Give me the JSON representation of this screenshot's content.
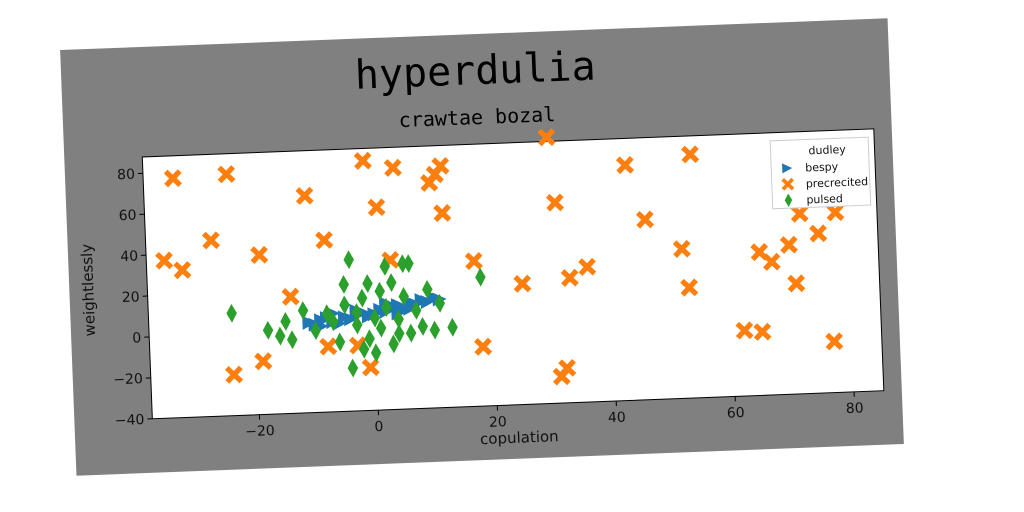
{
  "chart_data": {
    "type": "scatter",
    "title": "hyperdulia",
    "subtitle": "crawtae bozal",
    "xlabel": "copulation",
    "ylabel": "weightlessly",
    "xlim": [
      -38,
      85
    ],
    "ylim": [
      -40,
      88
    ],
    "xticks": [
      -20,
      0,
      20,
      40,
      60,
      80
    ],
    "yticks": [
      -40,
      -20,
      0,
      20,
      40,
      60,
      80
    ],
    "grid": false,
    "legend": {
      "title": "dudley",
      "placement": "top-right"
    },
    "series": [
      {
        "name": "bespy",
        "marker": "triangle-right",
        "color": "#1f77b4",
        "points": [
          [
            -11,
            4
          ],
          [
            -10,
            3
          ],
          [
            -9,
            5
          ],
          [
            -8,
            6
          ],
          [
            -7,
            4
          ],
          [
            -6,
            3
          ],
          [
            -5,
            6
          ],
          [
            -4,
            5
          ],
          [
            -3,
            7
          ],
          [
            -2,
            8
          ],
          [
            -1,
            6
          ],
          [
            0,
            7
          ],
          [
            1,
            9
          ],
          [
            2,
            8
          ],
          [
            3,
            10
          ],
          [
            4,
            11
          ],
          [
            5,
            9
          ],
          [
            6,
            12
          ],
          [
            7,
            11
          ],
          [
            8,
            13
          ],
          [
            9,
            12
          ],
          [
            10,
            14
          ],
          [
            11,
            13
          ],
          [
            -7,
            8
          ],
          [
            -3,
            9
          ],
          [
            2,
            12
          ],
          [
            6,
            9
          ],
          [
            -9,
            2
          ],
          [
            4,
            7
          ]
        ]
      },
      {
        "name": "precrecited",
        "marker": "x",
        "color": "#ff7f0e",
        "points": [
          [
            -35,
            37
          ],
          [
            -33,
            77
          ],
          [
            -32,
            32
          ],
          [
            -27,
            46
          ],
          [
            -24,
            78
          ],
          [
            -24,
            -20
          ],
          [
            -19,
            38
          ],
          [
            -19,
            -14
          ],
          [
            -14,
            17
          ],
          [
            -11,
            66
          ],
          [
            -8,
            44
          ],
          [
            -8,
            -8
          ],
          [
            -3,
            -8
          ],
          [
            -1,
            82
          ],
          [
            -1,
            -19
          ],
          [
            1,
            59
          ],
          [
            3,
            33
          ],
          [
            4,
            78
          ],
          [
            10,
            70
          ],
          [
            11,
            74
          ],
          [
            12,
            55
          ],
          [
            12,
            78
          ],
          [
            17,
            31
          ],
          [
            18,
            -11
          ],
          [
            25,
            19
          ],
          [
            30,
            90
          ],
          [
            31,
            -27
          ],
          [
            31,
            58
          ],
          [
            32,
            -23
          ],
          [
            33,
            21
          ],
          [
            36,
            26
          ],
          [
            43,
            75
          ],
          [
            46,
            48
          ],
          [
            52,
            33
          ],
          [
            53,
            14
          ],
          [
            54,
            79
          ],
          [
            62,
            -8
          ],
          [
            65,
            -9
          ],
          [
            65,
            30
          ],
          [
            67,
            25
          ],
          [
            70,
            33
          ],
          [
            71,
            14
          ],
          [
            72,
            48
          ],
          [
            75,
            38
          ],
          [
            77,
            -15
          ],
          [
            78,
            48
          ]
        ]
      },
      {
        "name": "pulsed",
        "marker": "diamond",
        "color": "#2ca02c",
        "points": [
          [
            -24,
            10
          ],
          [
            -18,
            1
          ],
          [
            -16,
            -2
          ],
          [
            -15,
            5
          ],
          [
            -14,
            -4
          ],
          [
            -12,
            10
          ],
          [
            -10,
            0
          ],
          [
            -8,
            8
          ],
          [
            -7,
            4
          ],
          [
            -6,
            -6
          ],
          [
            -5,
            22
          ],
          [
            -5,
            12
          ],
          [
            -4,
            34
          ],
          [
            -4,
            -19
          ],
          [
            -3,
            8
          ],
          [
            -3,
            2
          ],
          [
            -2,
            15
          ],
          [
            -2,
            -10
          ],
          [
            -1,
            22
          ],
          [
            -1,
            -5
          ],
          [
            0,
            5
          ],
          [
            0,
            -12
          ],
          [
            1,
            18
          ],
          [
            1,
            0
          ],
          [
            2,
            30
          ],
          [
            2,
            10
          ],
          [
            3,
            -8
          ],
          [
            3,
            22
          ],
          [
            4,
            4
          ],
          [
            4,
            -3
          ],
          [
            5,
            15
          ],
          [
            5,
            31
          ],
          [
            6,
            31
          ],
          [
            6,
            -3
          ],
          [
            7,
            8
          ],
          [
            8,
            0
          ],
          [
            9,
            18
          ],
          [
            10,
            -2
          ],
          [
            11,
            11
          ],
          [
            13,
            -1
          ],
          [
            18,
            23
          ]
        ]
      }
    ]
  }
}
